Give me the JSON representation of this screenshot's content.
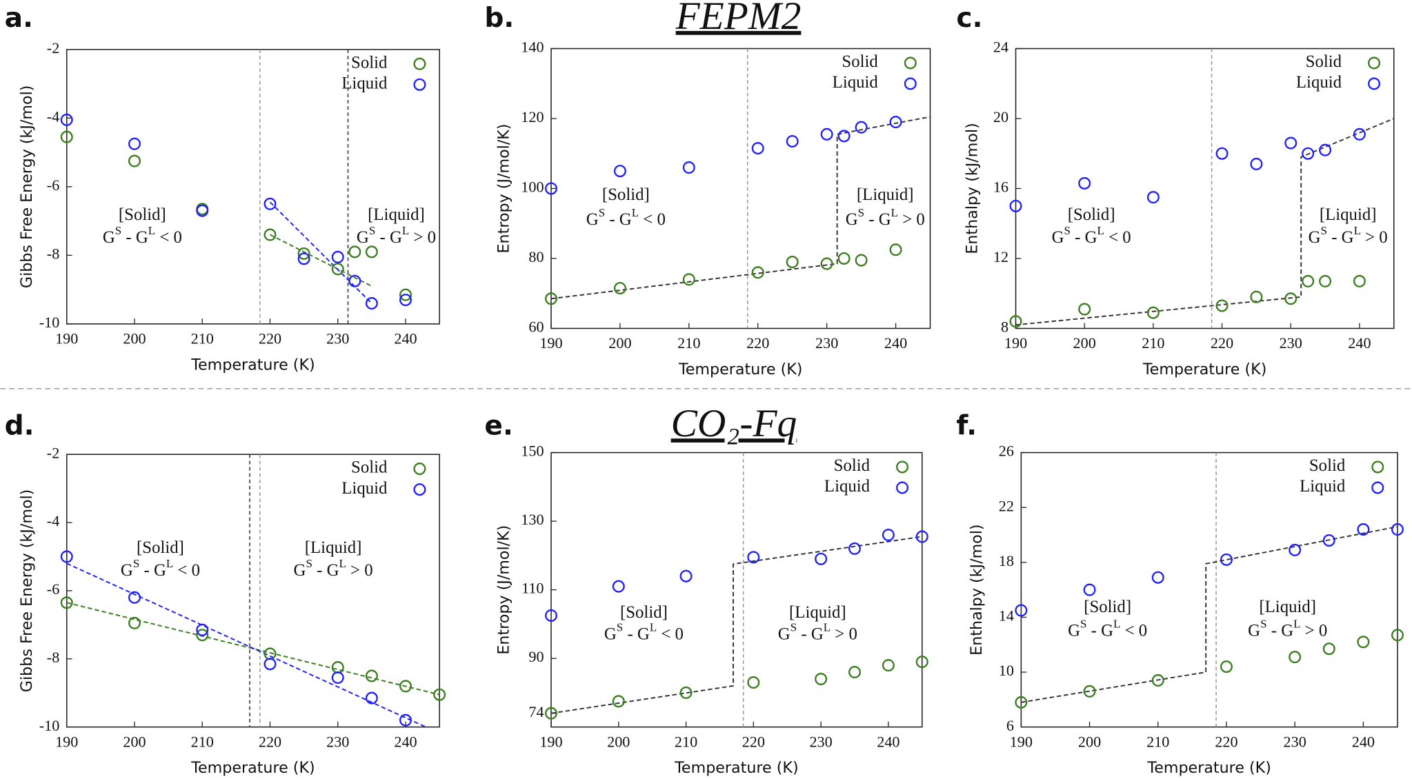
{
  "chart_data": [
    {
      "type": "scatter",
      "label": "a.",
      "xlabel": "Temperature (K)",
      "ylabel": "Gibbs Free Energy (kJ/mol)",
      "xlim": [
        190,
        245
      ],
      "ylim": [
        -10,
        -2
      ],
      "xticks": [
        190,
        200,
        210,
        220,
        230,
        240
      ],
      "yticks": [
        -10,
        -8,
        -6,
        -4,
        -2
      ],
      "legend": "top-right",
      "series": [
        {
          "name": "Solid",
          "color": "#3a7d1e",
          "x": [
            190,
            200,
            210,
            220,
            225,
            230,
            232.5,
            235,
            240
          ],
          "values": [
            -4.55,
            -5.25,
            -6.65,
            -7.4,
            -7.95,
            -8.4,
            -7.9,
            -7.9,
            -9.15
          ]
        },
        {
          "name": "Liquid",
          "color": "#1f1fff",
          "x": [
            190,
            200,
            210,
            220,
            225,
            230,
            232.5,
            235,
            240
          ],
          "values": [
            -4.05,
            -4.75,
            -6.7,
            -6.5,
            -8.1,
            -8.05,
            -8.75,
            -9.4,
            -9.3
          ]
        }
      ],
      "fits": [
        {
          "color": "#3a7d1e",
          "x": [
            220,
            235
          ],
          "y": [
            -7.4,
            -8.9
          ]
        },
        {
          "color": "#1f1fff",
          "x": [
            220,
            235
          ],
          "y": [
            -6.45,
            -9.4
          ]
        }
      ],
      "vlines": [
        {
          "x": 218.5,
          "color": "#999999"
        },
        {
          "x": 231.5,
          "color": "#333333"
        }
      ],
      "annotations": [
        {
          "text": "[Solid]",
          "expr": [
            "G",
            "S",
            " - G",
            "L",
            " < 0"
          ]
        },
        {
          "text": "[Liquid]",
          "expr": [
            "G",
            "S",
            " - G",
            "L",
            " > 0"
          ]
        }
      ]
    },
    {
      "type": "scatter",
      "label": "b.",
      "title": "FEPM2",
      "xlabel": "Temperature (K)",
      "ylabel": "Entropy (J/mol/K)",
      "xlim": [
        190,
        245
      ],
      "ylim": [
        60,
        140
      ],
      "xticks": [
        190,
        200,
        210,
        220,
        230,
        240
      ],
      "yticks": [
        60,
        80,
        100,
        120,
        140
      ],
      "legend": "top-right",
      "series": [
        {
          "name": "Solid",
          "color": "#3a7d1e",
          "x": [
            190,
            200,
            210,
            220,
            225,
            230,
            232.5,
            235,
            240
          ],
          "values": [
            68.5,
            71.5,
            74,
            76,
            79,
            78.5,
            80,
            79.5,
            82.5
          ]
        },
        {
          "name": "Liquid",
          "color": "#1f1fff",
          "x": [
            190,
            200,
            210,
            220,
            225,
            230,
            232.5,
            235,
            240
          ],
          "values": [
            100,
            105,
            106,
            111.5,
            113.5,
            115.5,
            115,
            117.5,
            119
          ]
        }
      ],
      "fits": [
        {
          "color": "#333333",
          "x": [
            190,
            231.5,
            231.5,
            245
          ],
          "y": [
            68.5,
            78.5,
            115.5,
            120.5
          ]
        }
      ],
      "vlines": [
        {
          "x": 218.5,
          "color": "#999999"
        }
      ],
      "annotations": [
        {
          "text": "[Solid]",
          "expr": [
            "G",
            "S",
            " - G",
            "L",
            " < 0"
          ]
        },
        {
          "text": "[Liquid]",
          "expr": [
            "G",
            "S",
            " - G",
            "L",
            " > 0"
          ]
        }
      ]
    },
    {
      "type": "scatter",
      "label": "c.",
      "xlabel": "Temperature (K)",
      "ylabel": "Enthalpy (kJ/mol)",
      "xlim": [
        190,
        245
      ],
      "ylim": [
        8,
        24
      ],
      "xticks": [
        190,
        200,
        210,
        220,
        230,
        240
      ],
      "yticks": [
        8,
        12,
        16,
        20,
        24
      ],
      "legend": "top-right",
      "series": [
        {
          "name": "Solid",
          "color": "#3a7d1e",
          "x": [
            190,
            200,
            210,
            220,
            225,
            230,
            232.5,
            235,
            240
          ],
          "values": [
            8.4,
            9.1,
            8.9,
            9.3,
            9.8,
            9.7,
            10.7,
            10.7,
            10.7
          ]
        },
        {
          "name": "Liquid",
          "color": "#1f1fff",
          "x": [
            190,
            200,
            210,
            220,
            225,
            230,
            232.5,
            235,
            240
          ],
          "values": [
            15,
            16.3,
            15.5,
            18,
            17.4,
            18.6,
            18,
            18.2,
            19.1
          ]
        }
      ],
      "fits": [
        {
          "color": "#333333",
          "x": [
            190,
            231.5,
            231.5,
            245
          ],
          "y": [
            8.2,
            9.8,
            17.8,
            20
          ]
        }
      ],
      "vlines": [
        {
          "x": 218.5,
          "color": "#999999"
        }
      ],
      "annotations": [
        {
          "text": "[Solid]",
          "expr": [
            "G",
            "S",
            " - G",
            "L",
            " < 0"
          ]
        },
        {
          "text": "[Liquid]",
          "expr": [
            "G",
            "S",
            " - G",
            "L",
            " > 0"
          ]
        }
      ]
    },
    {
      "type": "scatter",
      "label": "d.",
      "xlabel": "Temperature (K)",
      "ylabel": "Gibbs Free Energy (kJ/mol)",
      "xlim": [
        190,
        245
      ],
      "ylim": [
        -10,
        -2
      ],
      "xticks": [
        190,
        200,
        210,
        220,
        230,
        240
      ],
      "yticks": [
        -10,
        -8,
        -6,
        -4,
        -2
      ],
      "legend": "top-right",
      "series": [
        {
          "name": "Solid",
          "color": "#3a7d1e",
          "x": [
            190,
            200,
            210,
            220,
            230,
            235,
            240,
            245
          ],
          "values": [
            -6.35,
            -6.95,
            -7.3,
            -7.85,
            -8.25,
            -8.5,
            -8.8,
            -9.05
          ]
        },
        {
          "name": "Liquid",
          "color": "#1f1fff",
          "x": [
            190,
            200,
            210,
            220,
            230,
            235,
            240
          ],
          "values": [
            -5,
            -6.2,
            -7.15,
            -8.15,
            -8.55,
            -9.15,
            -9.8
          ]
        }
      ],
      "fits": [
        {
          "color": "#3a7d1e",
          "x": [
            190,
            245
          ],
          "y": [
            -6.35,
            -9.05
          ]
        },
        {
          "color": "#1f1fff",
          "x": [
            190,
            243
          ],
          "y": [
            -5.2,
            -10
          ]
        }
      ],
      "vlines": [
        {
          "x": 217,
          "color": "#333333"
        },
        {
          "x": 218.5,
          "color": "#999999"
        }
      ],
      "annotations": [
        {
          "text": "[Solid]",
          "expr": [
            "G",
            "S",
            " - G",
            "L",
            " < 0"
          ]
        },
        {
          "text": "[Liquid]",
          "expr": [
            "G",
            "S",
            " - G",
            "L",
            " > 0"
          ]
        }
      ]
    },
    {
      "type": "scatter",
      "label": "e.",
      "title": "CO₂-Fq",
      "xlabel": "Temperature (K)",
      "ylabel": "Entropy (J/mol/K)",
      "xlim": [
        190,
        245
      ],
      "ylim": [
        70,
        150
      ],
      "xticks": [
        190,
        200,
        210,
        220,
        230,
        240
      ],
      "yticks": [
        74,
        90,
        110,
        130,
        150
      ],
      "legend": "top-right",
      "series": [
        {
          "name": "Solid",
          "color": "#3a7d1e",
          "x": [
            190,
            200,
            210,
            220,
            230,
            235,
            240,
            245
          ],
          "values": [
            74,
            77.5,
            80,
            83,
            84,
            86,
            88,
            89
          ]
        },
        {
          "name": "Liquid",
          "color": "#1f1fff",
          "x": [
            190,
            200,
            210,
            220,
            230,
            235,
            240,
            245
          ],
          "values": [
            102.5,
            111,
            114,
            119.5,
            119,
            122,
            126,
            125.5
          ]
        }
      ],
      "fits": [
        {
          "color": "#333333",
          "x": [
            190,
            217,
            217,
            245
          ],
          "y": [
            74,
            82,
            117.5,
            125.5
          ]
        }
      ],
      "vlines": [
        {
          "x": 218.5,
          "color": "#999999"
        }
      ],
      "annotations": [
        {
          "text": "[Solid]",
          "expr": [
            "G",
            "S",
            " - G",
            "L",
            " < 0"
          ]
        },
        {
          "text": "[Liquid]",
          "expr": [
            "G",
            "S",
            " - G",
            "L",
            " > 0"
          ]
        }
      ]
    },
    {
      "type": "scatter",
      "label": "f.",
      "xlabel": "Temperature (K)",
      "ylabel": "Enthalpy (kJ/mol)",
      "xlim": [
        190,
        245
      ],
      "ylim": [
        6,
        26
      ],
      "xticks": [
        190,
        200,
        210,
        220,
        230,
        240
      ],
      "yticks": [
        6,
        10,
        14,
        18,
        22,
        26
      ],
      "legend": "top-right",
      "series": [
        {
          "name": "Solid",
          "color": "#3a7d1e",
          "x": [
            190,
            200,
            210,
            220,
            230,
            235,
            240,
            245
          ],
          "values": [
            7.8,
            8.6,
            9.4,
            10.4,
            11.1,
            11.7,
            12.2,
            12.7
          ]
        },
        {
          "name": "Liquid",
          "color": "#1f1fff",
          "x": [
            190,
            200,
            210,
            220,
            230,
            235,
            240,
            245
          ],
          "values": [
            14.5,
            16,
            16.9,
            18.2,
            18.9,
            19.6,
            20.4,
            20.4
          ]
        }
      ],
      "fits": [
        {
          "color": "#333333",
          "x": [
            190,
            217,
            217,
            245
          ],
          "y": [
            7.8,
            10,
            17.9,
            20.6
          ]
        }
      ],
      "vlines": [
        {
          "x": 218.5,
          "color": "#999999"
        }
      ],
      "annotations": [
        {
          "text": "[Solid]",
          "expr": [
            "G",
            "S",
            " - G",
            "L",
            " < 0"
          ]
        },
        {
          "text": "[Liquid]",
          "expr": [
            "G",
            "S",
            " - G",
            "L",
            " > 0"
          ]
        }
      ]
    }
  ]
}
